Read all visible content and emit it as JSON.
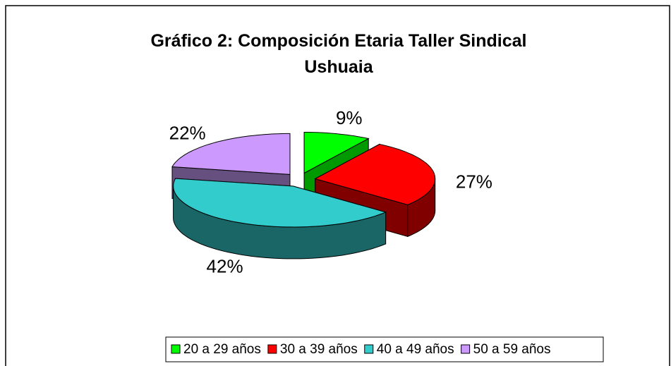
{
  "chart_data": {
    "type": "pie",
    "title": "Gráfico 2: Composición Etaria Taller Sindical Ushuaia",
    "categories": [
      "20 a 29 años",
      "30 a 39 años",
      "40 a 49 años",
      "50 a 59 años"
    ],
    "values": [
      9,
      27,
      42,
      22
    ],
    "value_labels": [
      "9%",
      "27%",
      "42%",
      "22%"
    ],
    "colors": [
      "#00ff00",
      "#ff0000",
      "#33cccc",
      "#cc99ff"
    ],
    "side_colors": [
      "#009900",
      "#800000",
      "#1a6666",
      "#665080"
    ],
    "legend": "bottom"
  }
}
